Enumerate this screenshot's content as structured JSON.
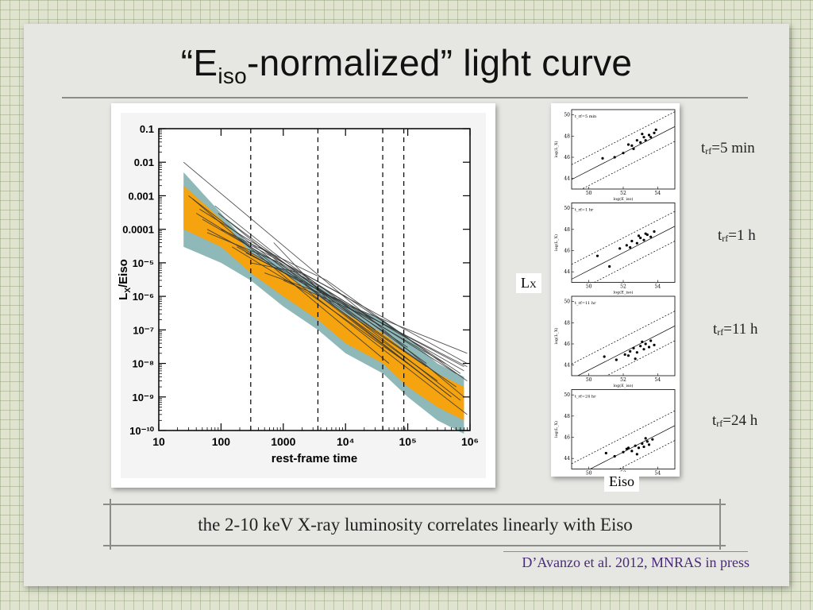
{
  "slide": {
    "title_pre": "“E",
    "title_sub": "iso",
    "title_post": "-normalized” light curve",
    "caption": "the 2-10 keV X-ray luminosity correlates linearly with Eiso",
    "citation": "D’Avanzo et al. 2012, MNRAS in press",
    "axis_lx": "L",
    "axis_lx_sub": "X",
    "axis_eiso": "Eiso"
  },
  "panel_labels": [
    {
      "pre": "t",
      "sub": "rf",
      "post": "=5 min"
    },
    {
      "pre": "t",
      "sub": "rf",
      "post": "=1 h"
    },
    {
      "pre": "t",
      "sub": "rf",
      "post": "=11 h"
    },
    {
      "pre": "t",
      "sub": "rf",
      "post": "=24 h"
    }
  ],
  "colors": {
    "band_outer": "#8fb8b8",
    "band_inner": "#f5a30f",
    "lines": "#333333"
  },
  "chart_data": [
    {
      "type": "line",
      "xlabel": "rest-frame time",
      "ylabel_main": "L",
      "ylabel_sub": "X",
      "ylabel_post": "/Eiso",
      "x_scale": "log",
      "y_scale": "log",
      "xlim": [
        10,
        1000000
      ],
      "ylim": [
        1e-10,
        0.1
      ],
      "x_ticks": [
        "10",
        "100",
        "1000",
        "10⁴",
        "10⁵",
        "10⁶"
      ],
      "y_ticks": [
        "0.1",
        "0.01",
        "0.001",
        "0.0001",
        "10⁻⁵",
        "10⁻⁶",
        "10⁻⁷",
        "10⁻⁸",
        "10⁻⁹",
        "10⁻¹⁰"
      ],
      "vertical_dashed_lines": [
        300,
        3600,
        39600,
        86400
      ],
      "band_outer": {
        "x": [
          25,
          100,
          300,
          1000,
          3600,
          10000,
          40000,
          100000,
          300000,
          800000
        ],
        "upper": [
          0.005,
          0.0003,
          3e-05,
          8e-06,
          2e-06,
          6e-07,
          2e-07,
          6e-08,
          1e-08,
          4e-09
        ],
        "lower": [
          3e-05,
          1e-05,
          3e-06,
          5e-07,
          1e-07,
          2e-08,
          5e-09,
          1e-09,
          2e-10,
          8e-11
        ]
      },
      "band_inner": {
        "x": [
          25,
          100,
          300,
          1000,
          3600,
          10000,
          40000,
          100000,
          300000,
          800000
        ],
        "upper": [
          0.002,
          0.0002,
          2e-05,
          5e-06,
          1e-06,
          3e-07,
          8e-08,
          2e-08,
          5e-09,
          2e-09
        ],
        "lower": [
          0.0001,
          3e-05,
          5e-06,
          1e-06,
          2e-07,
          4e-08,
          1e-08,
          2e-09,
          5e-10,
          2e-10
        ]
      },
      "series": [
        {
          "x": [
            25,
            800000
          ],
          "y": [
            0.01,
            1e-09
          ]
        },
        {
          "x": [
            30,
            500000
          ],
          "y": [
            0.001,
            1e-09
          ]
        },
        {
          "x": [
            40,
            300,
            900000
          ],
          "y": [
            0.0003,
            3e-05,
            3e-10
          ]
        },
        {
          "x": [
            50,
            1000,
            600000
          ],
          "y": [
            0.0002,
            8e-06,
            2e-09
          ]
        },
        {
          "x": [
            60,
            2000,
            400000
          ],
          "y": [
            0.0001,
            3e-06,
            1e-08
          ]
        },
        {
          "x": [
            80,
            700,
            200000
          ],
          "y": [
            0.0005,
            2e-05,
            1e-08
          ]
        },
        {
          "x": [
            100,
            5000,
            900000
          ],
          "y": [
            0.0001,
            3e-06,
            3e-09
          ]
        },
        {
          "x": [
            150,
            3000,
            100000
          ],
          "y": [
            3e-05,
            1e-06,
            1e-08
          ]
        },
        {
          "x": [
            200,
            10000,
            700000
          ],
          "y": [
            5e-05,
            1e-06,
            5e-09
          ]
        },
        {
          "x": [
            120,
            4000,
            300000
          ],
          "y": [
            0.0002,
            1e-06,
            3e-09
          ]
        },
        {
          "x": [
            300,
            2000,
            900000
          ],
          "y": [
            1e-05,
            5e-06,
            1e-08
          ]
        },
        {
          "x": [
            400,
            20000,
            800000
          ],
          "y": [
            3e-05,
            3e-07,
            8e-09
          ]
        },
        {
          "x": [
            500,
            8000,
            600000
          ],
          "y": [
            5e-06,
            8e-07,
            5e-09
          ]
        },
        {
          "x": [
            60,
            900,
            100000
          ],
          "y": [
            8e-05,
            1e-05,
            3e-08
          ]
        },
        {
          "x": [
            1000,
            30000,
            900000
          ],
          "y": [
            3e-06,
            2e-07,
            8e-09
          ]
        },
        {
          "x": [
            700,
            6000,
            500000
          ],
          "y": [
            4e-05,
            6e-07,
            1e-09
          ]
        },
        {
          "x": [
            35,
            200,
            50000
          ],
          "y": [
            0.0008,
            5e-05,
            1e-08
          ]
        },
        {
          "x": [
            90,
            1500,
            700000
          ],
          "y": [
            0.0003,
            6e-06,
            8e-10
          ]
        },
        {
          "x": [
            250,
            12000,
            900000
          ],
          "y": [
            2e-05,
            5e-07,
            2e-08
          ]
        },
        {
          "x": [
            2000,
            70000,
            800000
          ],
          "y": [
            4e-06,
            8e-08,
            6e-09
          ]
        },
        {
          "x": [
            45,
            600,
            30000
          ],
          "y": [
            0.0004,
            2e-05,
            1e-07
          ]
        },
        {
          "x": [
            180,
            2500,
            200000
          ],
          "y": [
            3e-05,
            2e-06,
            8e-09
          ]
        }
      ]
    }
  ],
  "correlation_panels": {
    "x_ticks": [
      "50",
      "52",
      "54"
    ],
    "y_ticks": [
      "50",
      "48",
      "46",
      "44"
    ],
    "xlabel": "log(E_iso)",
    "ylabel": "log(L_X)",
    "panels": [
      {
        "tag": "t_rf=5 min",
        "points": [
          [
            50.8,
            45.9
          ],
          [
            51.5,
            46.0
          ],
          [
            52.0,
            46.4
          ],
          [
            52.3,
            47.2
          ],
          [
            52.5,
            47.1
          ],
          [
            52.8,
            47.6
          ],
          [
            53.0,
            47.4
          ],
          [
            53.2,
            47.9
          ],
          [
            53.3,
            47.6
          ],
          [
            53.5,
            48.1
          ],
          [
            53.6,
            47.9
          ],
          [
            53.8,
            48.3
          ],
          [
            52.6,
            46.8
          ],
          [
            53.1,
            48.2
          ],
          [
            53.9,
            48.6
          ]
        ]
      },
      {
        "tag": "t_rf=1 hr",
        "points": [
          [
            50.5,
            45.5
          ],
          [
            51.8,
            46.2
          ],
          [
            52.2,
            46.5
          ],
          [
            52.5,
            46.9
          ],
          [
            52.8,
            46.7
          ],
          [
            53.0,
            47.2
          ],
          [
            53.2,
            47.0
          ],
          [
            53.4,
            47.5
          ],
          [
            53.6,
            47.3
          ],
          [
            53.8,
            47.8
          ],
          [
            52.9,
            47.4
          ],
          [
            53.3,
            47.6
          ],
          [
            52.4,
            46.3
          ],
          [
            51.2,
            44.5
          ]
        ]
      },
      {
        "tag": "t_rf=11 hr",
        "points": [
          [
            50.9,
            44.8
          ],
          [
            51.6,
            44.5
          ],
          [
            52.1,
            45.0
          ],
          [
            52.4,
            45.3
          ],
          [
            52.6,
            45.6
          ],
          [
            52.8,
            45.2
          ],
          [
            53.0,
            45.8
          ],
          [
            53.2,
            45.5
          ],
          [
            53.3,
            46.0
          ],
          [
            53.5,
            45.7
          ],
          [
            53.6,
            46.3
          ],
          [
            53.8,
            45.9
          ],
          [
            52.7,
            44.6
          ],
          [
            53.1,
            46.2
          ],
          [
            52.3,
            44.9
          ]
        ]
      },
      {
        "tag": "t_rf=24 hr",
        "points": [
          [
            51.0,
            44.5
          ],
          [
            51.5,
            44.2
          ],
          [
            52.0,
            44.6
          ],
          [
            52.3,
            45.0
          ],
          [
            52.5,
            44.7
          ],
          [
            52.7,
            45.2
          ],
          [
            52.9,
            45.0
          ],
          [
            53.1,
            45.4
          ],
          [
            53.2,
            45.1
          ],
          [
            53.4,
            45.6
          ],
          [
            53.5,
            45.3
          ],
          [
            53.7,
            45.8
          ],
          [
            52.8,
            44.4
          ],
          [
            53.3,
            45.9
          ],
          [
            52.2,
            44.9
          ]
        ]
      }
    ]
  }
}
